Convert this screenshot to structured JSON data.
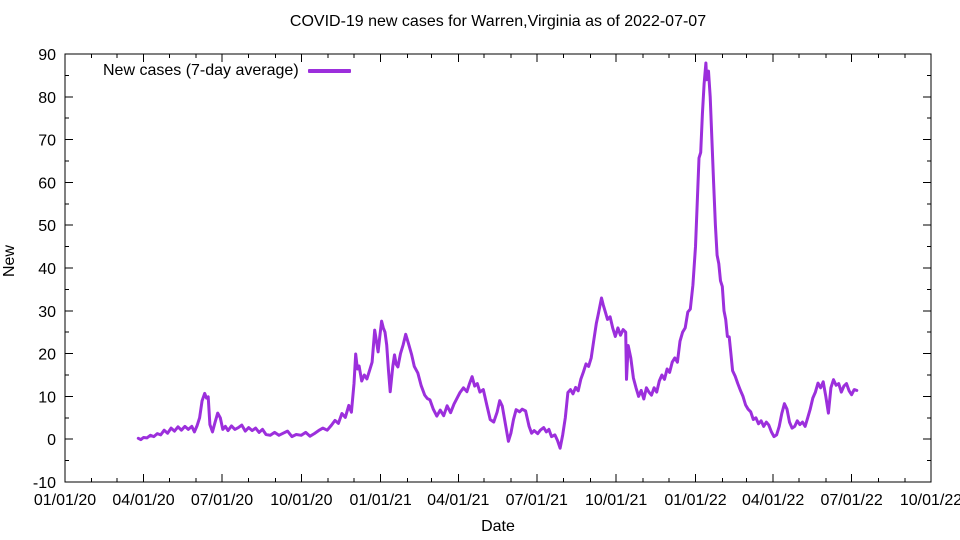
{
  "chart_data": {
    "type": "line",
    "title": "COVID-19 new cases for Warren,Virginia as of 2022-07-07",
    "xlabel": "Date",
    "ylabel": "New",
    "grid": false,
    "background_color": "#ffffff",
    "axis_color": "#000000",
    "x_axis": {
      "start_label": "01/01/20",
      "end_label": "10/01/22",
      "days_span": 1004,
      "minor_tick_unit": "month",
      "major_tick_unit": "quarter",
      "tick_labels": [
        {
          "label": "01/01/20",
          "day": 0
        },
        {
          "label": "04/01/20",
          "day": 91
        },
        {
          "label": "07/01/20",
          "day": 182
        },
        {
          "label": "10/01/20",
          "day": 274
        },
        {
          "label": "01/01/21",
          "day": 366
        },
        {
          "label": "04/01/21",
          "day": 456
        },
        {
          "label": "07/01/21",
          "day": 547
        },
        {
          "label": "10/01/21",
          "day": 639
        },
        {
          "label": "01/01/22",
          "day": 731
        },
        {
          "label": "04/01/22",
          "day": 821
        },
        {
          "label": "07/01/22",
          "day": 912
        },
        {
          "label": "10/01/22",
          "day": 1004
        }
      ]
    },
    "y_axis": {
      "min": -10,
      "max": 90,
      "major_step": 10,
      "minor_step": 5,
      "tick_labels": [
        "-10",
        "0",
        "10",
        "20",
        "30",
        "40",
        "50",
        "60",
        "70",
        "80",
        "90"
      ]
    },
    "legend": {
      "position": "top-left",
      "entries": [
        {
          "label": "New cases (7-day average)",
          "color": "#9C2FDC"
        }
      ]
    },
    "series": [
      {
        "name": "New cases (7-day average)",
        "color": "#9C2FDC",
        "line_width": 3,
        "x_unit": "days since 2020-01-01",
        "points": [
          [
            85,
            0.2
          ],
          [
            88,
            -0.1
          ],
          [
            91,
            0.4
          ],
          [
            95,
            0.3
          ],
          [
            99,
            0.9
          ],
          [
            103,
            0.6
          ],
          [
            107,
            1.3
          ],
          [
            111,
            1.0
          ],
          [
            115,
            2.1
          ],
          [
            119,
            1.4
          ],
          [
            123,
            2.6
          ],
          [
            127,
            1.9
          ],
          [
            131,
            2.9
          ],
          [
            135,
            2.1
          ],
          [
            139,
            3.0
          ],
          [
            143,
            2.3
          ],
          [
            147,
            3.0
          ],
          [
            150,
            1.7
          ],
          [
            153,
            3.1
          ],
          [
            156,
            5.0
          ],
          [
            159,
            9.0
          ],
          [
            162,
            10.7
          ],
          [
            164,
            9.6
          ],
          [
            166,
            9.9
          ],
          [
            168,
            3.4
          ],
          [
            171,
            1.7
          ],
          [
            174,
            4.0
          ],
          [
            177,
            6.1
          ],
          [
            180,
            5.0
          ],
          [
            183,
            2.3
          ],
          [
            186,
            3.0
          ],
          [
            189,
            2.0
          ],
          [
            193,
            3.1
          ],
          [
            197,
            2.3
          ],
          [
            201,
            2.7
          ],
          [
            205,
            3.3
          ],
          [
            209,
            1.9
          ],
          [
            213,
            2.7
          ],
          [
            217,
            2.0
          ],
          [
            221,
            2.6
          ],
          [
            225,
            1.6
          ],
          [
            229,
            2.3
          ],
          [
            233,
            1.1
          ],
          [
            238,
            0.9
          ],
          [
            243,
            1.6
          ],
          [
            248,
            0.9
          ],
          [
            253,
            1.4
          ],
          [
            258,
            1.9
          ],
          [
            263,
            0.6
          ],
          [
            268,
            1.1
          ],
          [
            274,
            0.9
          ],
          [
            279,
            1.6
          ],
          [
            284,
            0.7
          ],
          [
            289,
            1.3
          ],
          [
            294,
            2.0
          ],
          [
            299,
            2.6
          ],
          [
            304,
            2.1
          ],
          [
            309,
            3.3
          ],
          [
            313,
            4.4
          ],
          [
            317,
            3.7
          ],
          [
            321,
            6.0
          ],
          [
            325,
            5.1
          ],
          [
            329,
            7.9
          ],
          [
            332,
            6.3
          ],
          [
            335,
            13.0
          ],
          [
            337,
            19.9
          ],
          [
            339,
            16.4
          ],
          [
            341,
            17.1
          ],
          [
            344,
            13.6
          ],
          [
            347,
            15.0
          ],
          [
            350,
            14.1
          ],
          [
            353,
            16.0
          ],
          [
            356,
            18.0
          ],
          [
            359,
            25.5
          ],
          [
            361,
            23.0
          ],
          [
            363,
            20.4
          ],
          [
            365,
            24.0
          ],
          [
            367,
            27.6
          ],
          [
            369,
            26.0
          ],
          [
            371,
            25.0
          ],
          [
            373,
            22.0
          ],
          [
            375,
            16.0
          ],
          [
            377,
            11.1
          ],
          [
            380,
            17.0
          ],
          [
            382,
            19.7
          ],
          [
            384,
            17.5
          ],
          [
            386,
            16.9
          ],
          [
            389,
            20.0
          ],
          [
            392,
            22.0
          ],
          [
            395,
            24.5
          ],
          [
            398,
            22.5
          ],
          [
            402,
            19.7
          ],
          [
            405,
            17.0
          ],
          [
            409,
            15.5
          ],
          [
            413,
            12.5
          ],
          [
            417,
            10.3
          ],
          [
            420,
            9.5
          ],
          [
            423,
            9.2
          ],
          [
            427,
            7.0
          ],
          [
            431,
            5.4
          ],
          [
            435,
            6.8
          ],
          [
            439,
            5.5
          ],
          [
            443,
            7.8
          ],
          [
            447,
            6.2
          ],
          [
            451,
            8.2
          ],
          [
            455,
            9.8
          ],
          [
            458,
            10.9
          ],
          [
            462,
            12.0
          ],
          [
            466,
            11.1
          ],
          [
            469,
            13.0
          ],
          [
            472,
            14.6
          ],
          [
            475,
            12.4
          ],
          [
            478,
            13.0
          ],
          [
            481,
            11.0
          ],
          [
            485,
            11.6
          ],
          [
            489,
            8.0
          ],
          [
            493,
            4.6
          ],
          [
            497,
            4.0
          ],
          [
            501,
            6.3
          ],
          [
            504,
            9.0
          ],
          [
            507,
            7.7
          ],
          [
            511,
            3.0
          ],
          [
            514,
            -0.5
          ],
          [
            517,
            1.4
          ],
          [
            520,
            4.6
          ],
          [
            523,
            6.9
          ],
          [
            527,
            6.4
          ],
          [
            530,
            7.0
          ],
          [
            534,
            6.6
          ],
          [
            538,
            3.0
          ],
          [
            541,
            1.4
          ],
          [
            544,
            2.0
          ],
          [
            548,
            1.3
          ],
          [
            551,
            2.1
          ],
          [
            555,
            2.7
          ],
          [
            558,
            1.7
          ],
          [
            561,
            2.3
          ],
          [
            564,
            0.6
          ],
          [
            568,
            1.0
          ],
          [
            571,
            -0.3
          ],
          [
            574,
            -2.1
          ],
          [
            577,
            1.0
          ],
          [
            580,
            5.0
          ],
          [
            583,
            10.9
          ],
          [
            586,
            11.6
          ],
          [
            589,
            10.6
          ],
          [
            592,
            12.1
          ],
          [
            595,
            11.3
          ],
          [
            598,
            14.0
          ],
          [
            601,
            15.7
          ],
          [
            604,
            17.6
          ],
          [
            607,
            17.0
          ],
          [
            610,
            19.0
          ],
          [
            613,
            23.0
          ],
          [
            616,
            27.0
          ],
          [
            618,
            29.0
          ],
          [
            620,
            31.0
          ],
          [
            622,
            33.0
          ],
          [
            624,
            31.4
          ],
          [
            626,
            30.0
          ],
          [
            629,
            28.0
          ],
          [
            632,
            28.6
          ],
          [
            635,
            26.0
          ],
          [
            638,
            24.0
          ],
          [
            641,
            26.0
          ],
          [
            644,
            24.3
          ],
          [
            647,
            25.6
          ],
          [
            650,
            25.0
          ],
          [
            651,
            14.0
          ],
          [
            653,
            21.9
          ],
          [
            656,
            19.0
          ],
          [
            659,
            14.3
          ],
          [
            662,
            12.0
          ],
          [
            665,
            10.0
          ],
          [
            668,
            11.4
          ],
          [
            671,
            9.4
          ],
          [
            674,
            12.0
          ],
          [
            677,
            11.0
          ],
          [
            680,
            10.3
          ],
          [
            683,
            12.0
          ],
          [
            686,
            11.0
          ],
          [
            689,
            13.6
          ],
          [
            692,
            15.0
          ],
          [
            695,
            14.0
          ],
          [
            698,
            16.4
          ],
          [
            701,
            15.6
          ],
          [
            704,
            18.0
          ],
          [
            707,
            19.0
          ],
          [
            710,
            18.0
          ],
          [
            713,
            22.9
          ],
          [
            716,
            25.0
          ],
          [
            719,
            26.0
          ],
          [
            722,
            29.7
          ],
          [
            725,
            30.4
          ],
          [
            728,
            36.0
          ],
          [
            731,
            45.0
          ],
          [
            733,
            55.0
          ],
          [
            735,
            65.7
          ],
          [
            737,
            67.0
          ],
          [
            739,
            76.0
          ],
          [
            741,
            83.0
          ],
          [
            743,
            87.9
          ],
          [
            744,
            84.0
          ],
          [
            746,
            86.0
          ],
          [
            748,
            80.0
          ],
          [
            750,
            70.0
          ],
          [
            752,
            60.0
          ],
          [
            754,
            50.0
          ],
          [
            756,
            43.0
          ],
          [
            758,
            41.0
          ],
          [
            760,
            37.0
          ],
          [
            762,
            35.7
          ],
          [
            764,
            30.0
          ],
          [
            766,
            28.0
          ],
          [
            768,
            24.0
          ],
          [
            770,
            23.9
          ],
          [
            772,
            20.0
          ],
          [
            774,
            16.0
          ],
          [
            777,
            14.7
          ],
          [
            780,
            13.0
          ],
          [
            783,
            11.4
          ],
          [
            786,
            10.0
          ],
          [
            789,
            8.0
          ],
          [
            792,
            7.0
          ],
          [
            795,
            6.4
          ],
          [
            798,
            4.6
          ],
          [
            801,
            5.0
          ],
          [
            804,
            3.6
          ],
          [
            807,
            4.3
          ],
          [
            810,
            3.0
          ],
          [
            813,
            4.0
          ],
          [
            816,
            3.3
          ],
          [
            819,
            1.7
          ],
          [
            822,
            0.6
          ],
          [
            825,
            1.0
          ],
          [
            828,
            3.0
          ],
          [
            831,
            6.0
          ],
          [
            834,
            8.3
          ],
          [
            837,
            7.0
          ],
          [
            840,
            4.0
          ],
          [
            843,
            2.6
          ],
          [
            846,
            3.0
          ],
          [
            849,
            4.3
          ],
          [
            852,
            3.4
          ],
          [
            855,
            4.0
          ],
          [
            858,
            3.0
          ],
          [
            861,
            5.0
          ],
          [
            864,
            7.0
          ],
          [
            867,
            9.6
          ],
          [
            870,
            11.0
          ],
          [
            873,
            13.1
          ],
          [
            876,
            12.0
          ],
          [
            879,
            13.4
          ],
          [
            882,
            10.0
          ],
          [
            885,
            6.1
          ],
          [
            888,
            12.0
          ],
          [
            891,
            13.9
          ],
          [
            894,
            12.6
          ],
          [
            897,
            13.0
          ],
          [
            900,
            11.0
          ],
          [
            903,
            12.4
          ],
          [
            906,
            13.0
          ],
          [
            909,
            11.3
          ],
          [
            912,
            10.4
          ],
          [
            915,
            11.6
          ],
          [
            918,
            11.4
          ]
        ]
      }
    ]
  }
}
